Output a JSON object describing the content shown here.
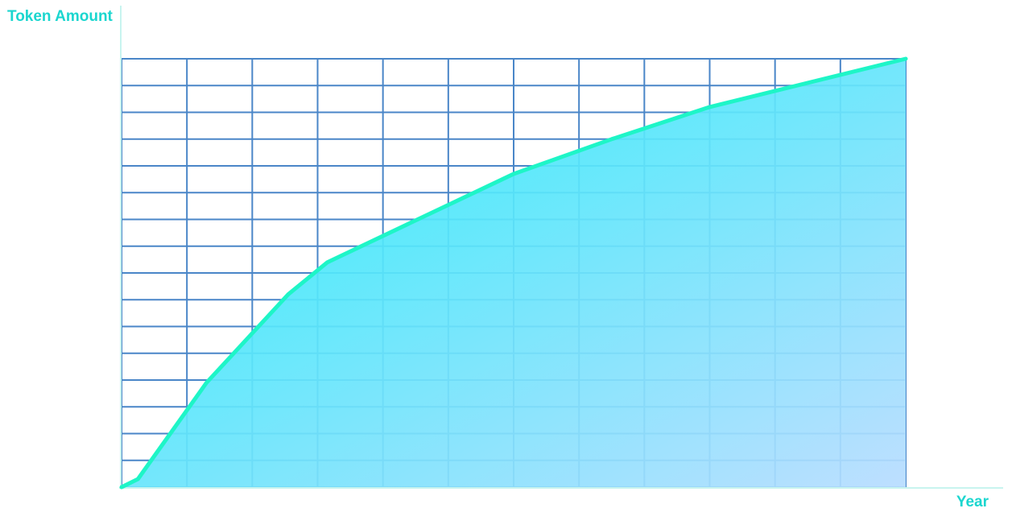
{
  "colors": {
    "accent": "#1bd6cf",
    "line": "#1ef5c7",
    "grid": "#4a86c8",
    "fill_start": "#14eef8",
    "fill_end": "#b8dcff"
  },
  "chart_data": {
    "type": "area",
    "title": "",
    "xlabel": "Year",
    "ylabel": "Token Amount",
    "grid": true,
    "legend": "none",
    "xlim": [
      0,
      12
    ],
    "ylim": [
      0,
      16
    ],
    "series": [
      {
        "x": [
          0,
          0.25,
          1.3,
          2.55,
          3.15,
          6.0,
          7.5,
          9.0,
          12
        ],
        "values": [
          0,
          0.3,
          3.9,
          7.2,
          8.4,
          11.7,
          13.0,
          14.2,
          16
        ]
      }
    ]
  }
}
